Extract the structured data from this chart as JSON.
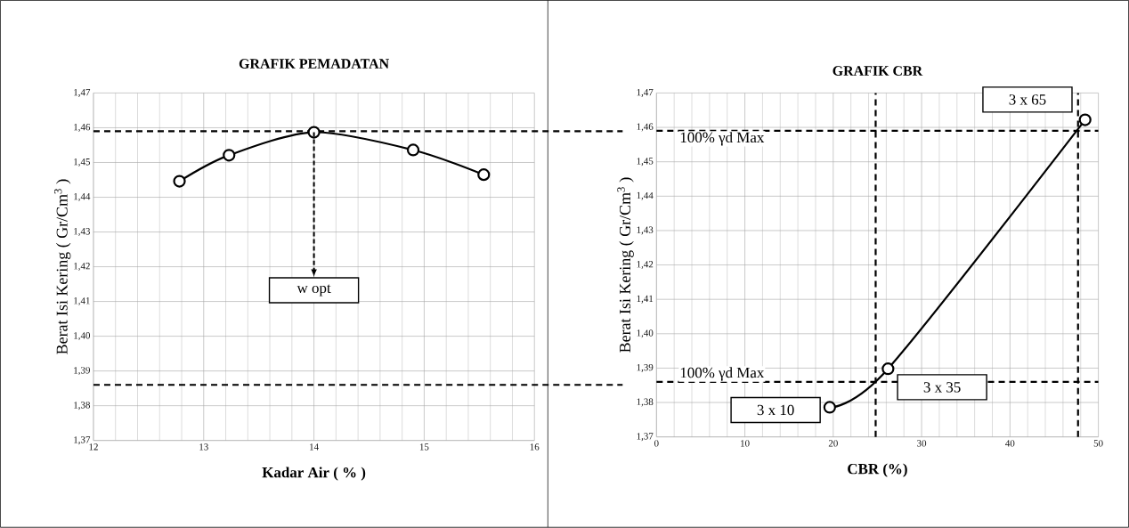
{
  "chart_data": [
    {
      "type": "line",
      "title": "GRAFIK PEMADATAN",
      "xlabel": "Kadar Air ( % )",
      "ylabel": "Berat Isi Kering ( Gr/Cm$^{3}$ )",
      "x": [
        12.78,
        13.23,
        14.0,
        14.9,
        15.54
      ],
      "series": [
        {
          "color": "#000000",
          "values": [
            1.4446,
            1.4521,
            1.4587,
            1.4536,
            1.4465
          ]
        }
      ],
      "marker": "circle",
      "line_style": "solid",
      "grid": true,
      "xlim": [
        12,
        16
      ],
      "xticks": [
        12,
        13,
        14,
        15,
        16
      ],
      "ylim": [
        1.37,
        1.47
      ],
      "yticks": [
        {
          "value": 1.37,
          "label": "1,37"
        },
        {
          "value": 1.38,
          "label": "1,38"
        },
        {
          "value": 1.39,
          "label": "1,39"
        },
        {
          "value": 1.4,
          "label": "1,40"
        },
        {
          "value": 1.41,
          "label": "1,41"
        },
        {
          "value": 1.42,
          "label": "1,42"
        },
        {
          "value": 1.43,
          "label": "1,43"
        },
        {
          "value": 1.44,
          "label": "1,44"
        },
        {
          "value": 1.45,
          "label": "1,45"
        },
        {
          "value": 1.46,
          "label": "1,46"
        },
        {
          "value": 1.47,
          "label": "1,47"
        }
      ],
      "ref_lines": [
        {
          "axis": "y",
          "value": 1.459,
          "line_style": "dashed",
          "color": "#000000"
        },
        {
          "axis": "y",
          "value": 1.386,
          "line_style": "dashed",
          "color": "#000000"
        }
      ],
      "annotations": [
        {
          "text": "w opt",
          "x": 14.0,
          "y": 1.4587
        }
      ]
    },
    {
      "type": "line",
      "title": "GRAFIK CBR",
      "xlabel": "CBR (%)",
      "ylabel": "Berat Isi Kering ( Gr/Cm$^{3}$ )",
      "x": [
        19.6,
        26.2,
        48.5
      ],
      "series": [
        {
          "color": "#000000",
          "values": [
            1.3786,
            1.3898,
            1.4622
          ]
        }
      ],
      "marker": "circle",
      "line_style": "solid",
      "grid": true,
      "xlim": [
        0,
        50
      ],
      "xticks": [
        0,
        10,
        20,
        30,
        40,
        50
      ],
      "ylim": [
        1.37,
        1.47
      ],
      "yticks": [
        {
          "value": 1.37,
          "label": "1,37"
        },
        {
          "value": 1.38,
          "label": "1,38"
        },
        {
          "value": 1.39,
          "label": "1,39"
        },
        {
          "value": 1.4,
          "label": "1,40"
        },
        {
          "value": 1.41,
          "label": "1,41"
        },
        {
          "value": 1.42,
          "label": "1,42"
        },
        {
          "value": 1.43,
          "label": "1,43"
        },
        {
          "value": 1.44,
          "label": "1,44"
        },
        {
          "value": 1.45,
          "label": "1,45"
        },
        {
          "value": 1.46,
          "label": "1,46"
        },
        {
          "value": 1.47,
          "label": "1,47"
        }
      ],
      "ref_lines": [
        {
          "axis": "y",
          "value": 1.459,
          "label": "100% γd Max",
          "line_style": "dashed",
          "color": "#000000"
        },
        {
          "axis": "y",
          "value": 1.386,
          "label": "100% γd Max",
          "line_style": "dashed",
          "color": "#000000"
        },
        {
          "axis": "x",
          "value": 24.8,
          "line_style": "dashed",
          "color": "#000000"
        },
        {
          "axis": "x",
          "value": 47.7,
          "line_style": "dashed",
          "color": "#000000"
        }
      ],
      "annotations": [
        {
          "text": "3 x 10",
          "x": 19.6,
          "y": 1.3786
        },
        {
          "text": "3 x 35",
          "x": 26.2,
          "y": 1.3898
        },
        {
          "text": "3 x 65",
          "x": 48.5,
          "y": 1.4622
        }
      ]
    }
  ]
}
